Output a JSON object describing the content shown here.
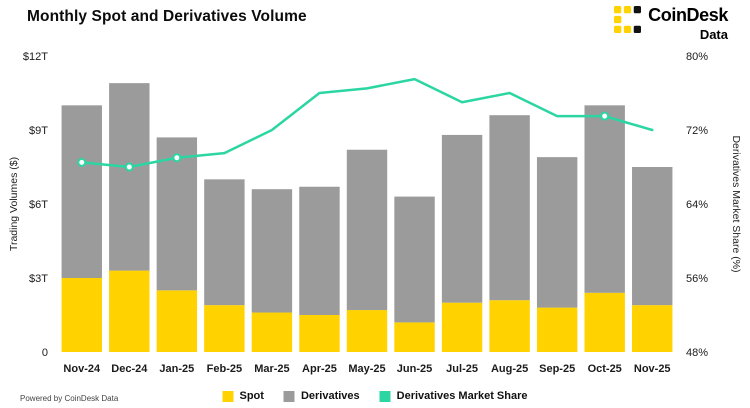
{
  "title": "Monthly Spot and Derivatives Volume",
  "brand": {
    "name": "CoinDesk",
    "sub": "Data"
  },
  "footer": {
    "powered_by": "Powered by CoinDesk Data"
  },
  "colors": {
    "spot": "#FFD200",
    "derivatives": "#9B9B9B",
    "share_line": "#2BD6A2",
    "background": "#FFFFFF"
  },
  "chart_data": {
    "type": "bar",
    "subtype": "stacked-bar-with-line",
    "title": "Monthly Spot and Derivatives Volume",
    "categories": [
      "Nov-24",
      "Dec-24",
      "Jan-25",
      "Feb-25",
      "Mar-25",
      "Apr-25",
      "May-25",
      "Jun-25",
      "Jul-25",
      "Aug-25",
      "Sep-25",
      "Oct-25",
      "Nov-25"
    ],
    "series": [
      {
        "name": "Spot",
        "type": "bar",
        "stack": true,
        "axis": "left",
        "unit": "trillion USD",
        "color": "#FFD200",
        "values": [
          3.0,
          3.3,
          2.5,
          1.9,
          1.6,
          1.5,
          1.7,
          1.2,
          2.0,
          2.1,
          1.8,
          2.4,
          1.9
        ]
      },
      {
        "name": "Derivatives",
        "type": "bar",
        "stack": true,
        "axis": "left",
        "unit": "trillion USD",
        "color": "#9B9B9B",
        "values": [
          7.0,
          7.6,
          6.2,
          5.1,
          5.0,
          5.2,
          6.5,
          5.1,
          6.8,
          7.5,
          6.1,
          7.6,
          5.6
        ]
      },
      {
        "name": "Derivatives Market Share",
        "type": "line",
        "axis": "right",
        "unit": "%",
        "color": "#2BD6A2",
        "values": [
          68.5,
          68.0,
          69.0,
          69.5,
          72.0,
          76.0,
          76.5,
          77.5,
          75.0,
          76.0,
          73.5,
          73.5,
          72.0
        ],
        "marker_indices": [
          0,
          1,
          2,
          11
        ]
      }
    ],
    "ylabel_left": "Trading Volumes ($)",
    "ylabel_right": "Derivatives Market Share (%)",
    "left_axis": {
      "min": 0,
      "max": 12,
      "tick_values": [
        0,
        3,
        6,
        9,
        12
      ],
      "tick_labels": [
        "0",
        "$3T",
        "$6T",
        "$9T",
        "$12T"
      ]
    },
    "right_axis": {
      "min": 48,
      "max": 80,
      "tick_values": [
        48,
        56,
        64,
        72,
        80
      ],
      "tick_labels": [
        "48%",
        "56%",
        "64%",
        "72%",
        "80%"
      ]
    },
    "grid": false,
    "legend_position": "bottom"
  },
  "legend": [
    {
      "label": "Spot",
      "color": "#FFD200"
    },
    {
      "label": "Derivatives",
      "color": "#9B9B9B"
    },
    {
      "label": "Derivatives Market Share",
      "color": "#2BD6A2"
    }
  ]
}
